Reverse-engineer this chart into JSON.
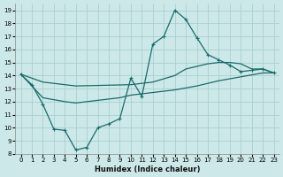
{
  "xlabel": "Humidex (Indice chaleur)",
  "bg_color": "#cce8e8",
  "grid_color": "#aacfcf",
  "line_color": "#1a6b6b",
  "xlim": [
    -0.5,
    23.5
  ],
  "ylim": [
    8,
    19.5
  ],
  "xticks": [
    0,
    1,
    2,
    3,
    4,
    5,
    6,
    7,
    8,
    9,
    10,
    11,
    12,
    13,
    14,
    15,
    16,
    17,
    18,
    19,
    20,
    21,
    22,
    23
  ],
  "yticks": [
    8,
    9,
    10,
    11,
    12,
    13,
    14,
    15,
    16,
    17,
    18,
    19
  ],
  "line1_x": [
    0,
    1,
    2,
    3,
    4,
    5,
    6,
    7,
    8,
    9,
    10,
    11,
    12,
    13,
    14,
    15,
    16,
    17,
    18,
    19,
    20,
    21,
    22,
    23
  ],
  "line1_y": [
    14.1,
    13.3,
    11.8,
    9.9,
    9.8,
    8.3,
    8.5,
    10.0,
    10.3,
    10.7,
    13.8,
    12.4,
    16.4,
    17.0,
    19.0,
    18.3,
    16.9,
    15.6,
    15.2,
    14.8,
    14.3,
    14.4,
    14.5,
    14.2
  ],
  "line2_x": [
    0,
    2,
    5,
    10,
    12,
    14,
    15,
    17,
    18,
    19,
    20,
    21,
    22,
    23
  ],
  "line2_y": [
    14.1,
    13.5,
    13.2,
    13.3,
    13.5,
    14.0,
    14.5,
    14.9,
    15.0,
    15.0,
    14.9,
    14.5,
    14.5,
    14.2
  ],
  "line3_x": [
    0,
    2,
    4,
    5,
    6,
    7,
    8,
    9,
    10,
    12,
    14,
    16,
    18,
    20,
    22,
    23
  ],
  "line3_y": [
    14.1,
    12.3,
    12.0,
    11.9,
    12.0,
    12.1,
    12.2,
    12.3,
    12.5,
    12.7,
    12.9,
    13.2,
    13.6,
    13.9,
    14.2,
    14.2
  ]
}
